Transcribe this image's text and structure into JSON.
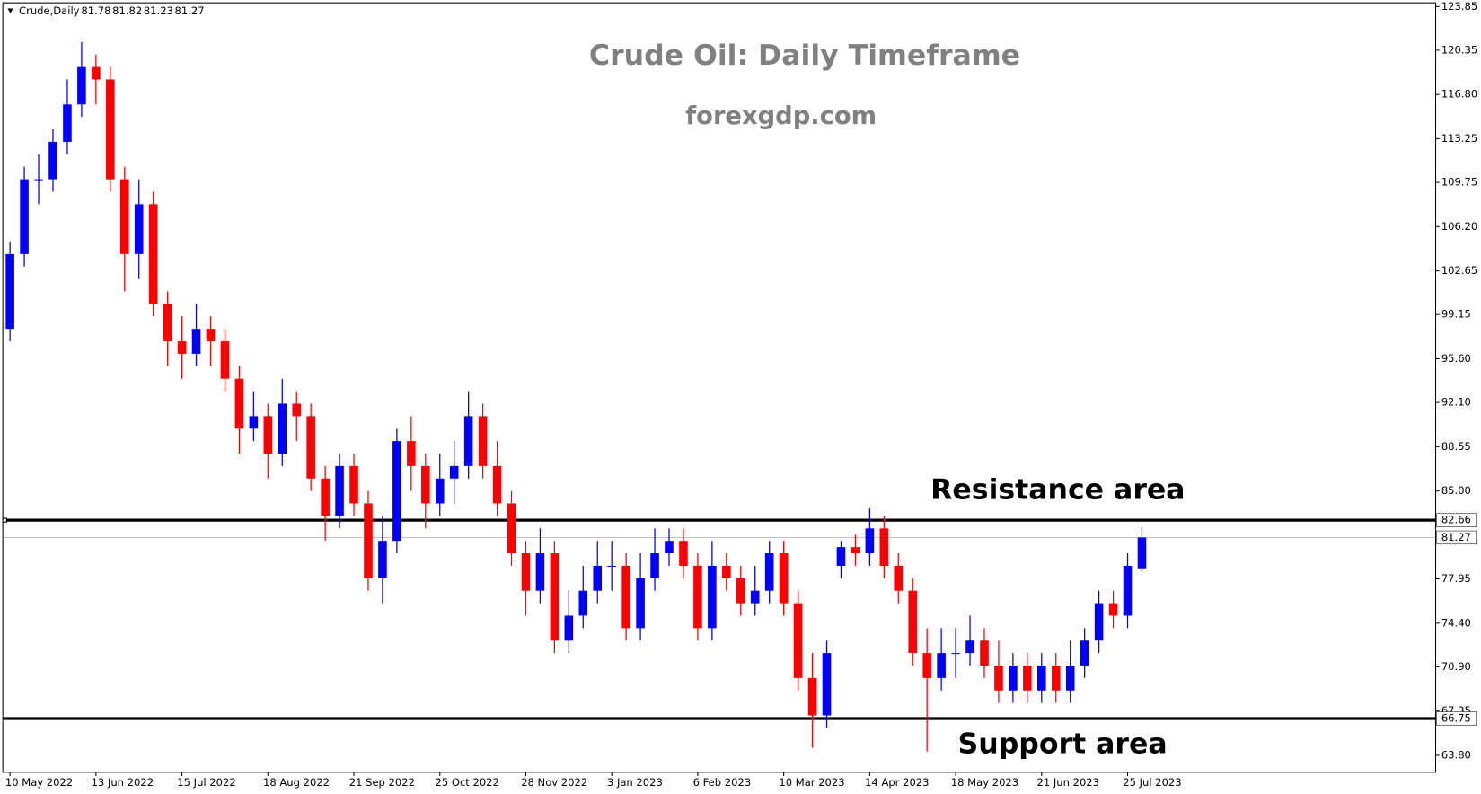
{
  "chart_data": {
    "type": "candlestick",
    "symbol": "Crude,Daily",
    "ohlc_header": [
      81.78,
      81.82,
      81.23,
      81.27
    ],
    "title": "Crude Oil: Daily Timeframe",
    "subtitle": "forexgdp.com",
    "annotations": [
      "Resistance area",
      "Support area"
    ],
    "resistance": 82.66,
    "support": 66.75,
    "last_price": 81.27,
    "up_color": "#0000ff",
    "down_color": "#ff0000",
    "xlim": [
      0,
      100
    ],
    "categories": [
      "10 May 2022",
      null,
      null,
      null,
      null,
      null,
      "13 Jun 2022",
      null,
      null,
      null,
      null,
      null,
      "15 Jul 2022",
      null,
      null,
      null,
      null,
      null,
      "18 Aug 2022",
      null,
      null,
      null,
      null,
      null,
      "21 Sep 2022",
      null,
      null,
      null,
      null,
      null,
      "25 Oct 2022",
      null,
      null,
      null,
      null,
      null,
      "28 Nov 2022",
      null,
      null,
      null,
      null,
      null,
      "3 Jan 2023",
      null,
      null,
      null,
      null,
      null,
      "6 Feb 2023",
      null,
      null,
      null,
      null,
      null,
      "10 Mar 2023",
      null,
      null,
      null,
      null,
      null,
      "14 Apr 2023",
      null,
      null,
      null,
      null,
      null,
      "18 May 2023",
      null,
      null,
      null,
      null,
      null,
      "21 Jun 2023",
      null,
      null,
      null,
      null,
      null,
      "25 Jul 2023",
      null
    ],
    "open": [
      98,
      104,
      110,
      110,
      113,
      116,
      119,
      118,
      110,
      104,
      108,
      100,
      97,
      96,
      98,
      97,
      94,
      90,
      91,
      88,
      92,
      91,
      86,
      83,
      87,
      84,
      78,
      81,
      89,
      87,
      84,
      86,
      87,
      91,
      87,
      84,
      80,
      77,
      80,
      73,
      75,
      77,
      79,
      79,
      74,
      78,
      80,
      81,
      79,
      74,
      79,
      78,
      76,
      77,
      80,
      76,
      70,
      67,
      79,
      80.5,
      80,
      82,
      79,
      77,
      72,
      70,
      72,
      72,
      73,
      71,
      69,
      71,
      69,
      71,
      69,
      71,
      73,
      76,
      75,
      78.8
    ],
    "high": [
      105,
      111,
      112,
      114,
      118,
      121,
      120,
      119,
      111,
      110,
      109,
      101,
      99,
      100,
      99,
      98,
      95,
      93,
      92,
      94,
      93,
      92,
      87,
      88,
      88,
      85,
      83,
      90,
      91,
      88,
      88,
      89,
      93,
      92,
      89,
      85,
      81,
      82,
      81,
      77,
      79,
      81,
      81,
      80,
      80,
      82,
      82,
      82,
      80,
      81,
      80,
      79,
      79,
      81,
      81,
      77,
      72,
      73,
      81,
      81.5,
      83.6,
      83,
      80,
      78,
      74,
      74,
      74,
      75,
      74,
      73,
      72,
      72,
      72,
      72,
      73,
      74,
      77,
      77,
      80,
      82.1
    ],
    "low": [
      97,
      103,
      108,
      109,
      112,
      115,
      116,
      109,
      101,
      102,
      99,
      95,
      94,
      95,
      95,
      93,
      88,
      89,
      86,
      87,
      89,
      85,
      81,
      82,
      83,
      77,
      76,
      80,
      85,
      82,
      83,
      84,
      86,
      86,
      83,
      79,
      75,
      76,
      72,
      72,
      74,
      76,
      77,
      73,
      73,
      77,
      79,
      78,
      73,
      73,
      77,
      75,
      75,
      76,
      75,
      69,
      64.4,
      66,
      78,
      79,
      79,
      78,
      76,
      71,
      64.1,
      69,
      70,
      71,
      70,
      68,
      68,
      68,
      68,
      68,
      68,
      70,
      72,
      74,
      74,
      78.5
    ],
    "close": [
      104,
      110,
      110,
      113,
      116,
      119,
      118,
      110,
      104,
      108,
      100,
      97,
      96,
      98,
      97,
      94,
      90,
      91,
      88,
      92,
      91,
      86,
      83,
      87,
      84,
      78,
      81,
      89,
      87,
      84,
      86,
      87,
      91,
      87,
      84,
      80,
      77,
      80,
      73,
      75,
      77,
      79,
      79,
      74,
      78,
      80,
      81,
      79,
      74,
      79,
      78,
      76,
      77,
      80,
      76,
      70,
      67,
      72,
      80.5,
      80,
      82,
      79,
      77,
      72,
      70,
      72,
      72,
      73,
      71,
      69,
      71,
      69,
      71,
      69,
      71,
      73,
      76,
      75,
      79,
      81.27
    ],
    "ylim": [
      62.44,
      124.15
    ],
    "yticks": [
      123.85,
      120.35,
      {
        "value": 116.8,
        "label": "116.80"
      },
      113.25,
      109.75,
      {
        "value": 106.2,
        "label": "106.20"
      },
      102.65,
      99.15,
      {
        "value": 95.6,
        "label": "95.60"
      },
      {
        "value": 92.1,
        "label": "92.10"
      },
      88.55,
      {
        "value": 85,
        "label": "85.00"
      },
      77.95,
      {
        "value": 74.4,
        "label": "74.40"
      },
      {
        "value": 70.9,
        "label": "70.90"
      },
      67.35,
      {
        "value": 63.8,
        "label": "63.80"
      }
    ]
  }
}
